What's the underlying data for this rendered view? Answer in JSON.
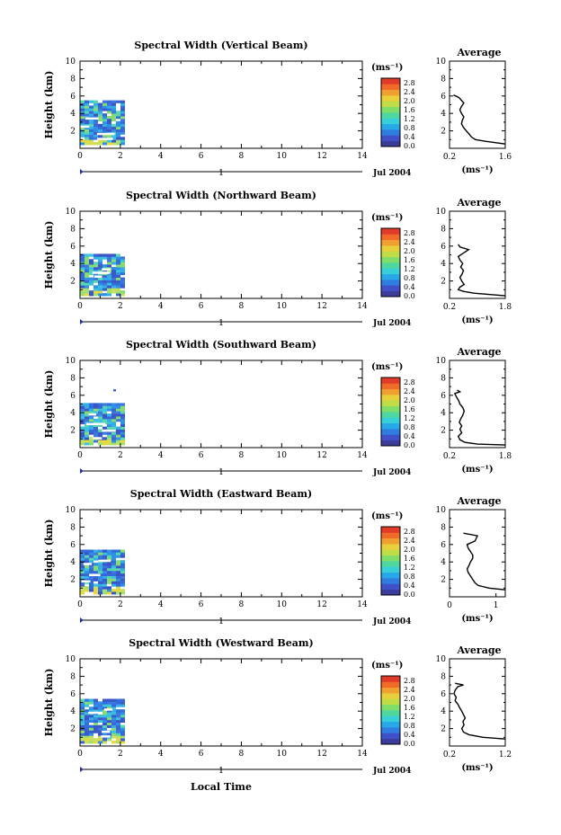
{
  "figure": {
    "xlabel": "Local Time",
    "date_label": "Jul 2004",
    "day_marker": "1",
    "x_ticks": [
      "0",
      "2",
      "4",
      "6",
      "8",
      "10",
      "12",
      "14"
    ],
    "y_ticks": [
      "2",
      "4",
      "6",
      "8",
      "10"
    ],
    "ylabel": "Height (km)",
    "colorbar_unit": "(ms⁻¹)",
    "colorbar_ticks": [
      "0.0",
      "0.4",
      "0.8",
      "1.2",
      "1.6",
      "2.0",
      "2.4",
      "2.8"
    ],
    "colorbar_colors": [
      "#3c3c9b",
      "#4050c8",
      "#2f7de0",
      "#27a8e8",
      "#38d0d8",
      "#4fd7a0",
      "#7fdd6a",
      "#c0dd48",
      "#e8d03a",
      "#f0a030",
      "#f06a28",
      "#e03a28"
    ],
    "avg_title": "Average",
    "avg_unit": "(ms⁻¹)",
    "panels": [
      {
        "title": "Spectral Width (Vertical Beam)",
        "avg_ticks": [
          "0.2",
          "1.6"
        ]
      },
      {
        "title": "Spectral Width (Northward Beam)",
        "avg_ticks": [
          "0.2",
          "1.8"
        ]
      },
      {
        "title": "Spectral Width (Southward Beam)",
        "avg_ticks": [
          "0.2",
          "1.8"
        ]
      },
      {
        "title": "Spectral Width (Eastward Beam)",
        "avg_ticks": [
          "0",
          "1"
        ]
      },
      {
        "title": "Spectral Width (Westward Beam)",
        "avg_ticks": [
          "0.2",
          "1.2"
        ]
      }
    ]
  },
  "chart_data": [
    {
      "type": "heatmap",
      "title": "Spectral Width (Vertical Beam)",
      "xlabel": "",
      "ylabel": "Height (km)",
      "xlim": [
        0,
        14
      ],
      "ylim": [
        0,
        10
      ],
      "colorbar_range": [
        0.0,
        2.8
      ],
      "data_extent": {
        "x": [
          0,
          2.1
        ],
        "y": [
          0.4,
          5.3
        ]
      },
      "typical_value": 0.6
    },
    {
      "type": "heatmap",
      "title": "Spectral Width (Northward Beam)",
      "xlabel": "",
      "ylabel": "Height (km)",
      "xlim": [
        0,
        14
      ],
      "ylim": [
        0,
        10
      ],
      "colorbar_range": [
        0.0,
        2.8
      ],
      "data_extent": {
        "x": [
          0,
          2.1
        ],
        "y": [
          0.3,
          5.0
        ]
      },
      "typical_value": 0.5
    },
    {
      "type": "heatmap",
      "title": "Spectral Width (Southward Beam)",
      "xlabel": "",
      "ylabel": "Height (km)",
      "xlim": [
        0,
        14
      ],
      "ylim": [
        0,
        10
      ],
      "colorbar_range": [
        0.0,
        2.8
      ],
      "data_extent": {
        "x": [
          0,
          2.1
        ],
        "y": [
          0.3,
          5.0
        ]
      },
      "typical_value": 0.5
    },
    {
      "type": "heatmap",
      "title": "Spectral Width (Eastward Beam)",
      "xlabel": "",
      "ylabel": "Height (km)",
      "xlim": [
        0,
        14
      ],
      "ylim": [
        0,
        10
      ],
      "colorbar_range": [
        0.0,
        2.8
      ],
      "data_extent": {
        "x": [
          0,
          2.1
        ],
        "y": [
          0.3,
          5.3
        ]
      },
      "typical_value": 0.6
    },
    {
      "type": "heatmap",
      "title": "Spectral Width (Westward Beam)",
      "xlabel": "",
      "ylabel": "Height (km)",
      "xlim": [
        0,
        14
      ],
      "ylim": [
        0,
        10
      ],
      "colorbar_range": [
        0.0,
        2.8
      ],
      "data_extent": {
        "x": [
          0,
          2.1
        ],
        "y": [
          0.3,
          5.3
        ]
      },
      "typical_value": 0.6
    },
    {
      "type": "line",
      "title": "Average",
      "xlabel": "(ms⁻¹)",
      "ylabel": "",
      "panel": "Vertical Beam",
      "xlim": [
        0.2,
        1.6
      ],
      "ylim": [
        0,
        10
      ],
      "x": [
        1.6,
        1.1,
        0.85,
        0.75,
        0.7,
        0.62,
        0.55,
        0.5,
        0.52,
        0.56,
        0.5,
        0.46,
        0.5,
        0.56,
        0.5,
        0.44,
        0.36,
        0.3
      ],
      "y": [
        0.5,
        0.8,
        1.0,
        1.3,
        1.6,
        2.0,
        2.4,
        2.8,
        3.2,
        3.6,
        4.0,
        4.4,
        4.8,
        5.2,
        5.5,
        5.8,
        6.0,
        6.1
      ]
    },
    {
      "type": "line",
      "title": "Average",
      "xlabel": "(ms⁻¹)",
      "ylabel": "",
      "panel": "Northward Beam",
      "xlim": [
        0.2,
        1.8
      ],
      "ylim": [
        0,
        10
      ],
      "x": [
        1.8,
        0.9,
        0.6,
        0.45,
        0.5,
        0.62,
        0.55,
        0.5,
        0.56,
        0.6,
        0.52,
        0.58,
        0.5,
        0.45,
        0.6,
        0.75,
        0.5,
        0.45
      ],
      "y": [
        0.3,
        0.6,
        0.8,
        1.0,
        1.3,
        1.6,
        2.0,
        2.4,
        2.8,
        3.2,
        3.6,
        4.0,
        4.4,
        4.8,
        5.2,
        5.6,
        5.9,
        6.2
      ]
    },
    {
      "type": "line",
      "title": "Average",
      "xlabel": "(ms⁻¹)",
      "ylabel": "",
      "panel": "Southward Beam",
      "xlim": [
        0.2,
        1.8
      ],
      "ylim": [
        0,
        10
      ],
      "x": [
        1.8,
        1.0,
        0.65,
        0.5,
        0.45,
        0.55,
        0.5,
        0.55,
        0.48,
        0.52,
        0.58,
        0.62,
        0.58,
        0.5,
        0.46,
        0.4,
        0.35,
        0.5,
        0.42
      ],
      "y": [
        0.3,
        0.4,
        0.6,
        0.9,
        1.3,
        1.7,
        2.1,
        2.5,
        2.9,
        3.3,
        3.7,
        4.2,
        4.6,
        5.0,
        5.4,
        5.8,
        6.2,
        6.4,
        6.6
      ]
    },
    {
      "type": "line",
      "title": "Average",
      "xlabel": "(ms⁻¹)",
      "ylabel": "",
      "panel": "Eastward Beam",
      "xlim": [
        0,
        1.2
      ],
      "ylim": [
        0,
        10
      ],
      "x": [
        1.2,
        0.85,
        0.62,
        0.55,
        0.5,
        0.45,
        0.4,
        0.38,
        0.42,
        0.45,
        0.5,
        0.5,
        0.45,
        0.4,
        0.38,
        0.55,
        0.6,
        0.3
      ],
      "y": [
        0.8,
        1.0,
        1.3,
        1.6,
        2.0,
        2.4,
        2.8,
        3.2,
        3.6,
        4.0,
        4.4,
        4.8,
        5.2,
        5.6,
        6.0,
        6.4,
        7.0,
        7.3
      ]
    },
    {
      "type": "line",
      "title": "Average",
      "xlabel": "(ms⁻¹)",
      "ylabel": "",
      "panel": "Westward Beam",
      "xlim": [
        0.2,
        1.2
      ],
      "ylim": [
        0,
        10
      ],
      "x": [
        1.2,
        0.8,
        0.55,
        0.45,
        0.42,
        0.46,
        0.44,
        0.48,
        0.45,
        0.42,
        0.38,
        0.35,
        0.3,
        0.32,
        0.28,
        0.3,
        0.35,
        0.45,
        0.3
      ],
      "y": [
        0.8,
        1.0,
        1.3,
        1.6,
        2.0,
        2.4,
        2.8,
        3.2,
        3.6,
        4.0,
        4.4,
        4.8,
        5.2,
        5.6,
        6.0,
        6.4,
        6.8,
        7.0,
        7.2
      ]
    }
  ]
}
